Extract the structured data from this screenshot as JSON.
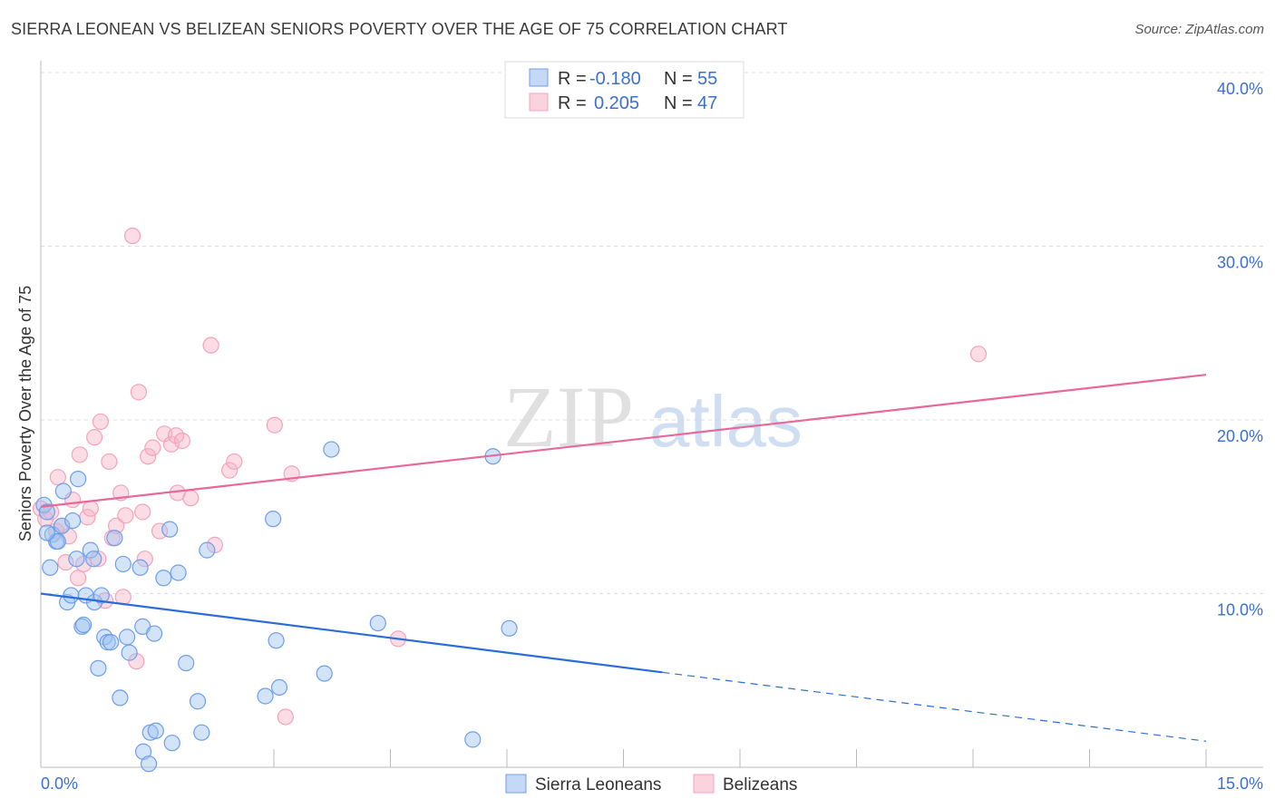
{
  "title": "SIERRA LEONEAN VS BELIZEAN SENIORS POVERTY OVER THE AGE OF 75 CORRELATION CHART",
  "source": "Source: ZipAtlas.com",
  "watermark": "ZIPatlas",
  "chart_data": {
    "type": "scatter",
    "title": "SIERRA LEONEAN VS BELIZEAN SENIORS POVERTY OVER THE AGE OF 75 CORRELATION CHART",
    "xlabel": "",
    "ylabel": "Seniors Poverty Over the Age of 75",
    "xlim": [
      0,
      15
    ],
    "ylim": [
      0,
      40.7
    ],
    "x_tick_labels": [
      "0.0%",
      "15.0%"
    ],
    "y_ticks": [
      10,
      20,
      30,
      40
    ],
    "y_tick_labels": [
      "10.0%",
      "20.0%",
      "30.0%",
      "40.0%"
    ],
    "grid": true,
    "legend_placement": "top-center",
    "stats": [
      {
        "r_label": "R =",
        "r": "-0.180",
        "n_label": "N =",
        "n": "55"
      },
      {
        "r_label": "R =",
        "r": "0.205",
        "n_label": "N =",
        "n": "47"
      }
    ],
    "series": [
      {
        "name": "Sierra Leoneans",
        "color": "#6d9eeb",
        "line_color": "#2a6dd9",
        "trend": {
          "x0": 0,
          "y0": 10.0,
          "x1": 15,
          "y1": 1.5,
          "solid_until": 8.0
        },
        "points": [
          [
            0.04,
            15.1
          ],
          [
            0.08,
            14.7
          ],
          [
            0.12,
            11.5
          ],
          [
            0.15,
            13.4
          ],
          [
            0.2,
            13.0
          ],
          [
            0.22,
            13.0
          ],
          [
            0.27,
            13.9
          ],
          [
            0.29,
            15.9
          ],
          [
            0.34,
            9.5
          ],
          [
            0.39,
            9.9
          ],
          [
            0.41,
            14.2
          ],
          [
            0.46,
            12.0
          ],
          [
            0.48,
            16.6
          ],
          [
            0.53,
            8.1
          ],
          [
            0.55,
            8.2
          ],
          [
            0.58,
            9.9
          ],
          [
            0.64,
            12.5
          ],
          [
            0.68,
            12.0
          ],
          [
            0.69,
            9.5
          ],
          [
            0.74,
            5.7
          ],
          [
            0.78,
            9.9
          ],
          [
            0.82,
            7.5
          ],
          [
            0.86,
            7.2
          ],
          [
            0.9,
            7.2
          ],
          [
            0.95,
            13.2
          ],
          [
            1.02,
            4.0
          ],
          [
            1.06,
            11.7
          ],
          [
            1.11,
            7.5
          ],
          [
            1.14,
            6.6
          ],
          [
            1.28,
            11.5
          ],
          [
            1.31,
            8.1
          ],
          [
            1.32,
            0.9
          ],
          [
            1.41,
            2.0
          ],
          [
            1.46,
            7.7
          ],
          [
            1.48,
            2.1
          ],
          [
            1.39,
            0.2
          ],
          [
            1.58,
            10.9
          ],
          [
            1.66,
            13.7
          ],
          [
            1.69,
            1.4
          ],
          [
            1.77,
            11.2
          ],
          [
            1.87,
            6.0
          ],
          [
            2.02,
            3.8
          ],
          [
            2.07,
            2.0
          ],
          [
            2.14,
            12.5
          ],
          [
            2.89,
            4.1
          ],
          [
            2.99,
            14.3
          ],
          [
            3.03,
            7.3
          ],
          [
            3.07,
            4.6
          ],
          [
            3.65,
            5.4
          ],
          [
            3.74,
            18.3
          ],
          [
            4.34,
            8.3
          ],
          [
            5.56,
            1.6
          ],
          [
            5.82,
            17.9
          ],
          [
            6.03,
            8.0
          ],
          [
            0.08,
            13.5
          ]
        ]
      },
      {
        "name": "Belizeans",
        "color": "#f4a3bb",
        "line_color": "#e8689a",
        "trend": {
          "x0": 0,
          "y0": 15.0,
          "x1": 15,
          "y1": 22.6,
          "solid_until": 15
        },
        "points": [
          [
            0.0,
            14.9
          ],
          [
            0.06,
            14.3
          ],
          [
            0.13,
            14.7
          ],
          [
            0.2,
            13.6
          ],
          [
            0.22,
            16.7
          ],
          [
            0.27,
            13.9
          ],
          [
            0.32,
            11.8
          ],
          [
            0.36,
            13.3
          ],
          [
            0.41,
            15.4
          ],
          [
            0.48,
            10.9
          ],
          [
            0.5,
            18.0
          ],
          [
            0.55,
            11.7
          ],
          [
            0.6,
            14.4
          ],
          [
            0.64,
            14.9
          ],
          [
            0.69,
            19.0
          ],
          [
            0.74,
            12.0
          ],
          [
            0.77,
            19.9
          ],
          [
            0.83,
            9.6
          ],
          [
            0.88,
            17.6
          ],
          [
            0.92,
            13.2
          ],
          [
            0.97,
            13.9
          ],
          [
            1.03,
            15.8
          ],
          [
            1.06,
            9.8
          ],
          [
            1.09,
            14.5
          ],
          [
            1.18,
            30.6
          ],
          [
            1.23,
            6.1
          ],
          [
            1.26,
            21.6
          ],
          [
            1.31,
            14.7
          ],
          [
            1.34,
            12.0
          ],
          [
            1.38,
            17.9
          ],
          [
            1.44,
            18.4
          ],
          [
            1.53,
            13.6
          ],
          [
            1.59,
            19.2
          ],
          [
            1.68,
            18.6
          ],
          [
            1.74,
            19.1
          ],
          [
            1.76,
            15.8
          ],
          [
            1.82,
            18.8
          ],
          [
            1.93,
            15.5
          ],
          [
            2.19,
            24.3
          ],
          [
            2.24,
            12.8
          ],
          [
            2.43,
            17.1
          ],
          [
            2.49,
            17.6
          ],
          [
            3.01,
            19.7
          ],
          [
            3.15,
            2.9
          ],
          [
            3.23,
            16.9
          ],
          [
            4.6,
            7.4
          ],
          [
            12.07,
            23.8
          ]
        ]
      }
    ]
  }
}
